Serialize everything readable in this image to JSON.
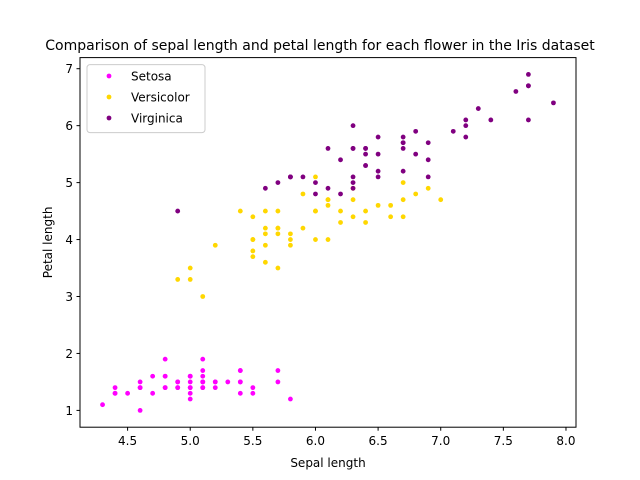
{
  "chart_data": {
    "type": "scatter",
    "title": "Comparison of sepal length and petal length for each flower in the Iris dataset",
    "xlabel": "Sepal length",
    "ylabel": "Petal length",
    "xlim": [
      4.12,
      8.08
    ],
    "ylim": [
      0.705,
      7.195
    ],
    "xticks": [
      "4.5",
      "5.0",
      "5.5",
      "6.0",
      "6.5",
      "7.0",
      "7.5",
      "8.0"
    ],
    "yticks": [
      "1",
      "2",
      "3",
      "4",
      "5",
      "6",
      "7"
    ],
    "grid": false,
    "legend": "upper left",
    "series": [
      {
        "name": "Setosa",
        "color": "#ff00ff",
        "x": [
          5.1,
          4.9,
          4.7,
          4.6,
          5.0,
          5.4,
          4.6,
          5.0,
          4.4,
          4.9,
          5.4,
          4.8,
          4.8,
          4.3,
          5.8,
          5.7,
          5.4,
          5.1,
          5.7,
          5.1,
          5.4,
          5.1,
          4.6,
          5.1,
          4.8,
          5.0,
          5.0,
          5.2,
          5.2,
          4.7,
          4.8,
          5.4,
          5.2,
          5.5,
          4.9,
          5.0,
          5.5,
          4.9,
          4.4,
          5.1,
          5.0,
          4.5,
          4.4,
          5.0,
          5.1,
          4.8,
          5.1,
          4.6,
          5.3,
          5.0
        ],
        "y": [
          1.4,
          1.4,
          1.3,
          1.5,
          1.4,
          1.7,
          1.4,
          1.5,
          1.4,
          1.5,
          1.5,
          1.6,
          1.4,
          1.1,
          1.2,
          1.5,
          1.3,
          1.4,
          1.7,
          1.5,
          1.7,
          1.5,
          1.0,
          1.7,
          1.9,
          1.6,
          1.6,
          1.5,
          1.4,
          1.6,
          1.6,
          1.5,
          1.5,
          1.4,
          1.5,
          1.2,
          1.3,
          1.4,
          1.3,
          1.5,
          1.3,
          1.3,
          1.3,
          1.6,
          1.9,
          1.4,
          1.6,
          1.4,
          1.5,
          1.4
        ]
      },
      {
        "name": "Versicolor",
        "color": "#ffd700",
        "x": [
          7.0,
          6.4,
          6.9,
          5.5,
          6.5,
          5.7,
          6.3,
          4.9,
          6.6,
          5.2,
          5.0,
          5.9,
          6.0,
          6.1,
          5.6,
          6.7,
          5.6,
          5.8,
          6.2,
          5.6,
          5.9,
          6.1,
          6.3,
          6.1,
          6.4,
          6.6,
          6.8,
          6.7,
          6.0,
          5.7,
          5.5,
          5.5,
          5.8,
          6.0,
          5.4,
          6.0,
          6.7,
          6.3,
          5.6,
          5.5,
          5.5,
          6.1,
          5.8,
          5.0,
          5.6,
          5.7,
          5.7,
          6.2,
          5.1,
          5.7
        ],
        "y": [
          4.7,
          4.5,
          4.9,
          4.0,
          4.6,
          4.5,
          4.7,
          3.3,
          4.6,
          3.9,
          3.5,
          4.2,
          4.0,
          4.7,
          3.6,
          4.4,
          4.5,
          4.1,
          4.5,
          3.9,
          4.8,
          4.0,
          4.9,
          4.7,
          4.3,
          4.4,
          4.8,
          5.0,
          4.5,
          3.5,
          3.8,
          3.7,
          3.9,
          5.1,
          4.5,
          4.5,
          4.7,
          4.4,
          4.1,
          4.0,
          4.4,
          4.6,
          4.0,
          3.3,
          4.2,
          4.2,
          4.2,
          4.3,
          3.0,
          4.1
        ]
      },
      {
        "name": "Virginica",
        "color": "#800080",
        "x": [
          6.3,
          5.8,
          7.1,
          6.3,
          6.5,
          7.6,
          4.9,
          7.3,
          6.7,
          7.2,
          6.5,
          6.4,
          6.8,
          5.7,
          5.8,
          6.4,
          6.5,
          7.7,
          7.7,
          6.0,
          6.9,
          5.6,
          7.7,
          6.3,
          6.7,
          7.2,
          6.2,
          6.1,
          6.4,
          7.2,
          7.4,
          7.9,
          6.4,
          6.3,
          6.1,
          7.7,
          6.3,
          6.4,
          6.0,
          6.9,
          6.7,
          6.9,
          5.8,
          6.8,
          6.7,
          6.7,
          6.3,
          6.5,
          6.2,
          5.9
        ],
        "y": [
          6.0,
          5.1,
          5.9,
          5.6,
          5.8,
          6.6,
          4.5,
          6.3,
          5.8,
          6.1,
          5.1,
          5.3,
          5.5,
          5.0,
          5.1,
          5.3,
          5.5,
          6.7,
          6.9,
          5.0,
          5.7,
          4.9,
          6.7,
          4.9,
          5.7,
          6.0,
          4.8,
          4.9,
          5.6,
          5.8,
          6.1,
          6.4,
          5.6,
          5.1,
          5.6,
          6.1,
          5.6,
          5.5,
          4.8,
          5.4,
          5.6,
          5.1,
          5.1,
          5.9,
          5.7,
          5.2,
          5.0,
          5.2,
          5.4,
          5.1
        ]
      }
    ]
  }
}
